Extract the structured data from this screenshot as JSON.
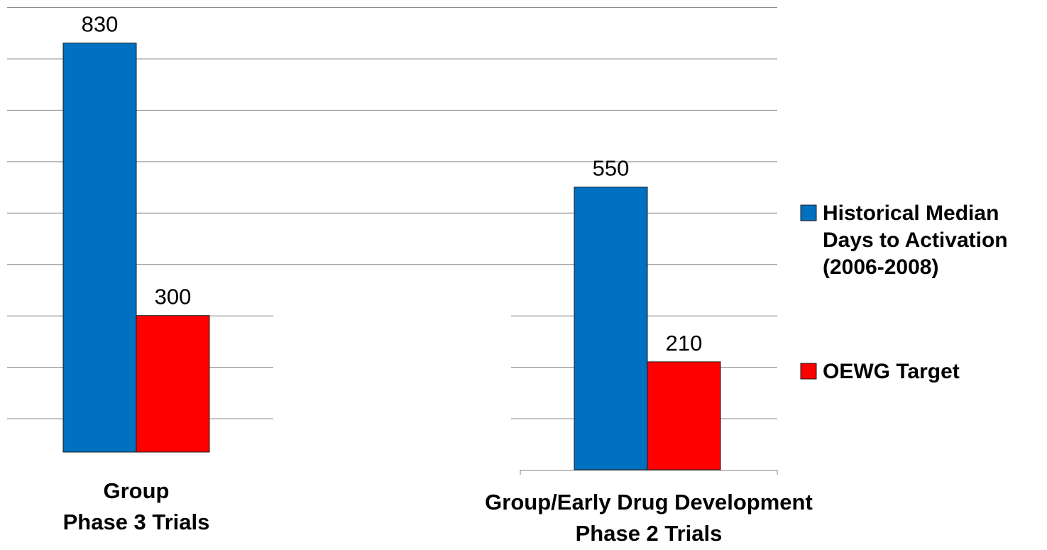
{
  "chart_data": {
    "type": "bar",
    "categories": [
      [
        "Group",
        "Phase 3 Trials"
      ],
      [
        "Group/Early Drug Development",
        "Phase 2 Trials"
      ]
    ],
    "series": [
      {
        "name": [
          "Historical Median",
          "Days to Activation",
          "(2006-2008)"
        ],
        "values": [
          830,
          550
        ],
        "color": "#0070c0"
      },
      {
        "name": [
          "OEWG Target"
        ],
        "values": [
          300,
          210
        ],
        "color": "#ff0000"
      }
    ],
    "data_labels": [
      [
        "830",
        "550"
      ],
      [
        "300",
        "210"
      ]
    ],
    "ylim": [
      0,
      900
    ],
    "grid": true,
    "legend": "right"
  }
}
